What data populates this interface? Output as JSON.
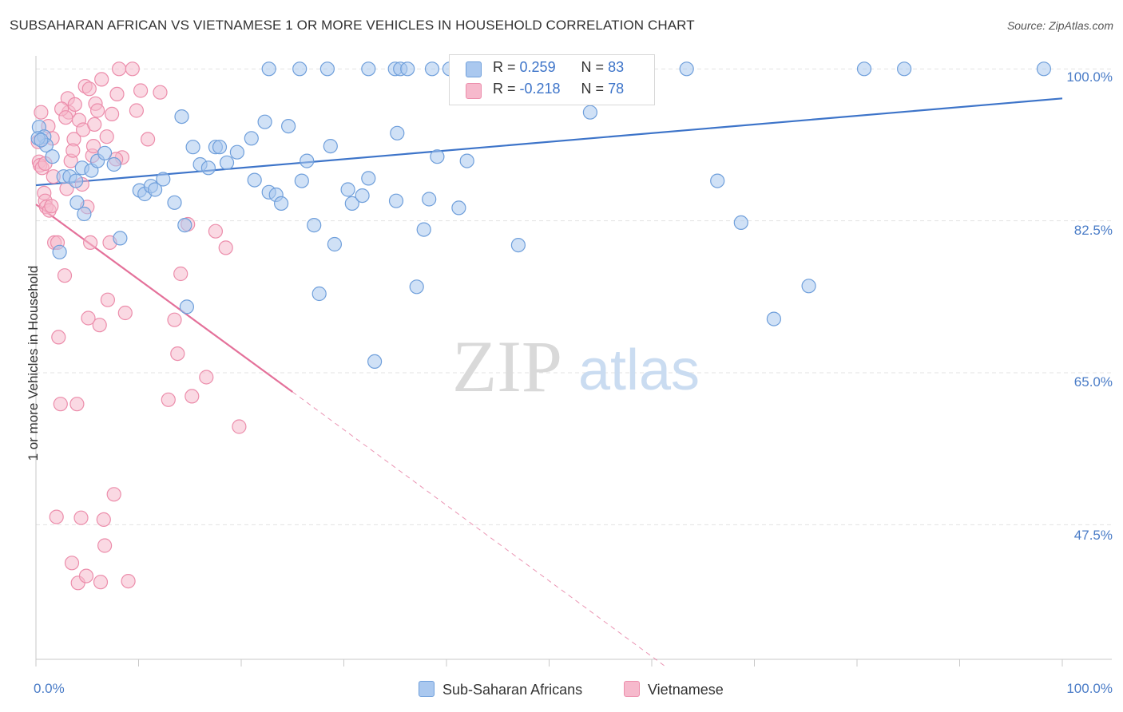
{
  "header": {
    "title": "SUBSAHARAN AFRICAN VS VIETNAMESE 1 OR MORE VEHICLES IN HOUSEHOLD CORRELATION CHART",
    "source": "Source: ZipAtlas.com"
  },
  "watermark": {
    "zip": "ZIP",
    "atlas": "atlas"
  },
  "legend": {
    "r_label": "R =",
    "n_label": "N =",
    "series": [
      {
        "r": "0.259",
        "n": "83"
      },
      {
        "r": "-0.218",
        "n": "78"
      }
    ]
  },
  "colors": {
    "blue_fill": "#aac8ef",
    "blue_stroke": "#6f9fdb",
    "blue_line": "#3d74c9",
    "pink_fill": "#f6b9cc",
    "pink_stroke": "#ec8dab",
    "pink_line": "#e4719a",
    "grid": "#e3e3e3",
    "axis_text": "#4a7cc7"
  },
  "chart_data": {
    "type": "scatter",
    "title": "SUBSAHARAN AFRICAN VS VIETNAMESE 1 OR MORE VEHICLES IN HOUSEHOLD CORRELATION CHART",
    "xlabel": "",
    "ylabel": "1 or more Vehicles in Household",
    "xlim": [
      0,
      100
    ],
    "ylim": [
      32,
      101.5
    ],
    "x_tick_labels": [
      "0.0%",
      "100.0%"
    ],
    "y_ticks": [
      100,
      82.5,
      65,
      47.5
    ],
    "y_tick_labels": [
      "100.0%",
      "82.5%",
      "65.0%",
      "47.5%"
    ],
    "grid": true,
    "legend_position": "top-center",
    "series": [
      {
        "name": "Sub-Saharan Africans",
        "r": 0.259,
        "n": 83,
        "trend": {
          "x": [
            0,
            100
          ],
          "y": [
            86.6,
            96.6
          ],
          "dashed_after": null
        },
        "points": [
          [
            0.3,
            93.3
          ],
          [
            0.8,
            92.2
          ],
          [
            1.0,
            91.2
          ],
          [
            1.6,
            89.9
          ],
          [
            2.3,
            78.9
          ],
          [
            2.7,
            87.6
          ],
          [
            3.3,
            87.6
          ],
          [
            3.9,
            87.1
          ],
          [
            4.0,
            84.6
          ],
          [
            4.5,
            88.6
          ],
          [
            4.7,
            83.3
          ],
          [
            5.4,
            88.3
          ],
          [
            6.0,
            89.4
          ],
          [
            6.7,
            90.3
          ],
          [
            7.6,
            89.0
          ],
          [
            8.2,
            80.5
          ],
          [
            10.1,
            86.0
          ],
          [
            10.6,
            85.6
          ],
          [
            11.2,
            86.5
          ],
          [
            11.6,
            86.1
          ],
          [
            12.4,
            87.3
          ],
          [
            13.5,
            84.6
          ],
          [
            14.2,
            94.5
          ],
          [
            14.5,
            82.0
          ],
          [
            14.7,
            72.6
          ],
          [
            15.3,
            91.0
          ],
          [
            16.0,
            89.0
          ],
          [
            16.8,
            88.6
          ],
          [
            17.5,
            91.0
          ],
          [
            17.9,
            91.0
          ],
          [
            18.6,
            89.2
          ],
          [
            19.6,
            90.4
          ],
          [
            21.3,
            87.2
          ],
          [
            21.0,
            92.0
          ],
          [
            22.3,
            93.9
          ],
          [
            22.7,
            85.8
          ],
          [
            23.4,
            85.5
          ],
          [
            23.9,
            84.5
          ],
          [
            24.6,
            93.4
          ],
          [
            25.9,
            87.1
          ],
          [
            26.4,
            89.4
          ],
          [
            27.1,
            82.0
          ],
          [
            27.6,
            74.1
          ],
          [
            28.7,
            91.1
          ],
          [
            29.1,
            79.8
          ],
          [
            30.4,
            86.1
          ],
          [
            30.8,
            84.5
          ],
          [
            31.8,
            85.4
          ],
          [
            32.4,
            87.4
          ],
          [
            35.2,
            92.6
          ],
          [
            35.1,
            84.8
          ],
          [
            37.1,
            74.9
          ],
          [
            37.8,
            81.5
          ],
          [
            38.3,
            85.0
          ],
          [
            39.1,
            89.9
          ],
          [
            41.2,
            84.0
          ],
          [
            42.0,
            89.4
          ],
          [
            33.0,
            66.3
          ],
          [
            54.0,
            95.0
          ],
          [
            47.0,
            79.7
          ],
          [
            55.0,
            97.3
          ],
          [
            66.4,
            87.1
          ],
          [
            68.7,
            82.3
          ],
          [
            71.9,
            71.2
          ],
          [
            75.3,
            75.0
          ],
          [
            22.7,
            100.0
          ],
          [
            25.7,
            100.0
          ],
          [
            28.4,
            100.0
          ],
          [
            32.4,
            100.0
          ],
          [
            35.0,
            100.0
          ],
          [
            35.5,
            100.0
          ],
          [
            36.2,
            100.0
          ],
          [
            38.6,
            100.0
          ],
          [
            40.3,
            100.0
          ],
          [
            53.6,
            100.0
          ],
          [
            55.6,
            100.0
          ],
          [
            57.8,
            100.0
          ],
          [
            63.4,
            100.0
          ],
          [
            80.7,
            100.0
          ],
          [
            84.6,
            100.0
          ],
          [
            98.2,
            100.0
          ],
          [
            0.2,
            92.0
          ],
          [
            0.5,
            91.8
          ]
        ]
      },
      {
        "name": "Vietnamese",
        "r": -0.218,
        "n": 78,
        "trend": {
          "x": [
            0,
            25.0,
            61.3
          ],
          "y": [
            84.4,
            62.8,
            31.2
          ],
          "dashed_after": 25.0
        },
        "points": [
          [
            0.2,
            91.6
          ],
          [
            0.3,
            89.3
          ],
          [
            0.4,
            88.9
          ],
          [
            0.6,
            88.6
          ],
          [
            0.9,
            89.1
          ],
          [
            0.8,
            85.7
          ],
          [
            0.9,
            84.8
          ],
          [
            1.0,
            84.1
          ],
          [
            1.3,
            83.7
          ],
          [
            1.5,
            84.2
          ],
          [
            1.7,
            87.6
          ],
          [
            1.8,
            80.0
          ],
          [
            2.1,
            80.0
          ],
          [
            2.2,
            69.1
          ],
          [
            2.4,
            61.4
          ],
          [
            2.8,
            76.2
          ],
          [
            3.0,
            86.2
          ],
          [
            3.1,
            96.6
          ],
          [
            3.2,
            95.0
          ],
          [
            3.4,
            89.4
          ],
          [
            3.7,
            91.9
          ],
          [
            3.8,
            95.9
          ],
          [
            4.0,
            61.4
          ],
          [
            4.2,
            94.1
          ],
          [
            4.4,
            48.3
          ],
          [
            4.5,
            86.7
          ],
          [
            4.8,
            98.0
          ],
          [
            5.0,
            84.1
          ],
          [
            5.1,
            71.3
          ],
          [
            5.3,
            80.0
          ],
          [
            5.5,
            90.0
          ],
          [
            5.6,
            91.1
          ],
          [
            5.8,
            96.0
          ],
          [
            6.0,
            95.2
          ],
          [
            6.2,
            70.5
          ],
          [
            6.4,
            98.8
          ],
          [
            6.7,
            45.1
          ],
          [
            7.0,
            73.4
          ],
          [
            7.2,
            80.0
          ],
          [
            7.4,
            94.8
          ],
          [
            7.6,
            51.0
          ],
          [
            7.9,
            97.1
          ],
          [
            8.1,
            100.0
          ],
          [
            8.4,
            89.8
          ],
          [
            8.7,
            71.9
          ],
          [
            9.0,
            41.0
          ],
          [
            9.4,
            100.0
          ],
          [
            9.8,
            95.2
          ],
          [
            10.2,
            97.5
          ],
          [
            10.9,
            91.9
          ],
          [
            12.1,
            97.3
          ],
          [
            12.9,
            61.9
          ],
          [
            13.5,
            71.1
          ],
          [
            13.8,
            67.2
          ],
          [
            14.1,
            76.4
          ],
          [
            14.8,
            82.1
          ],
          [
            15.2,
            62.3
          ],
          [
            16.6,
            64.5
          ],
          [
            17.5,
            81.3
          ],
          [
            18.5,
            79.4
          ],
          [
            19.8,
            58.8
          ],
          [
            2.0,
            48.4
          ],
          [
            3.5,
            43.1
          ],
          [
            4.1,
            40.8
          ],
          [
            4.9,
            41.6
          ],
          [
            6.3,
            40.9
          ],
          [
            6.6,
            48.1
          ],
          [
            0.5,
            95.0
          ],
          [
            1.2,
            93.4
          ],
          [
            1.6,
            92.0
          ],
          [
            2.5,
            95.4
          ],
          [
            2.9,
            94.4
          ],
          [
            3.6,
            90.6
          ],
          [
            4.6,
            93.0
          ],
          [
            5.2,
            97.7
          ],
          [
            5.7,
            93.6
          ],
          [
            6.9,
            92.2
          ],
          [
            7.8,
            89.6
          ]
        ]
      }
    ]
  }
}
